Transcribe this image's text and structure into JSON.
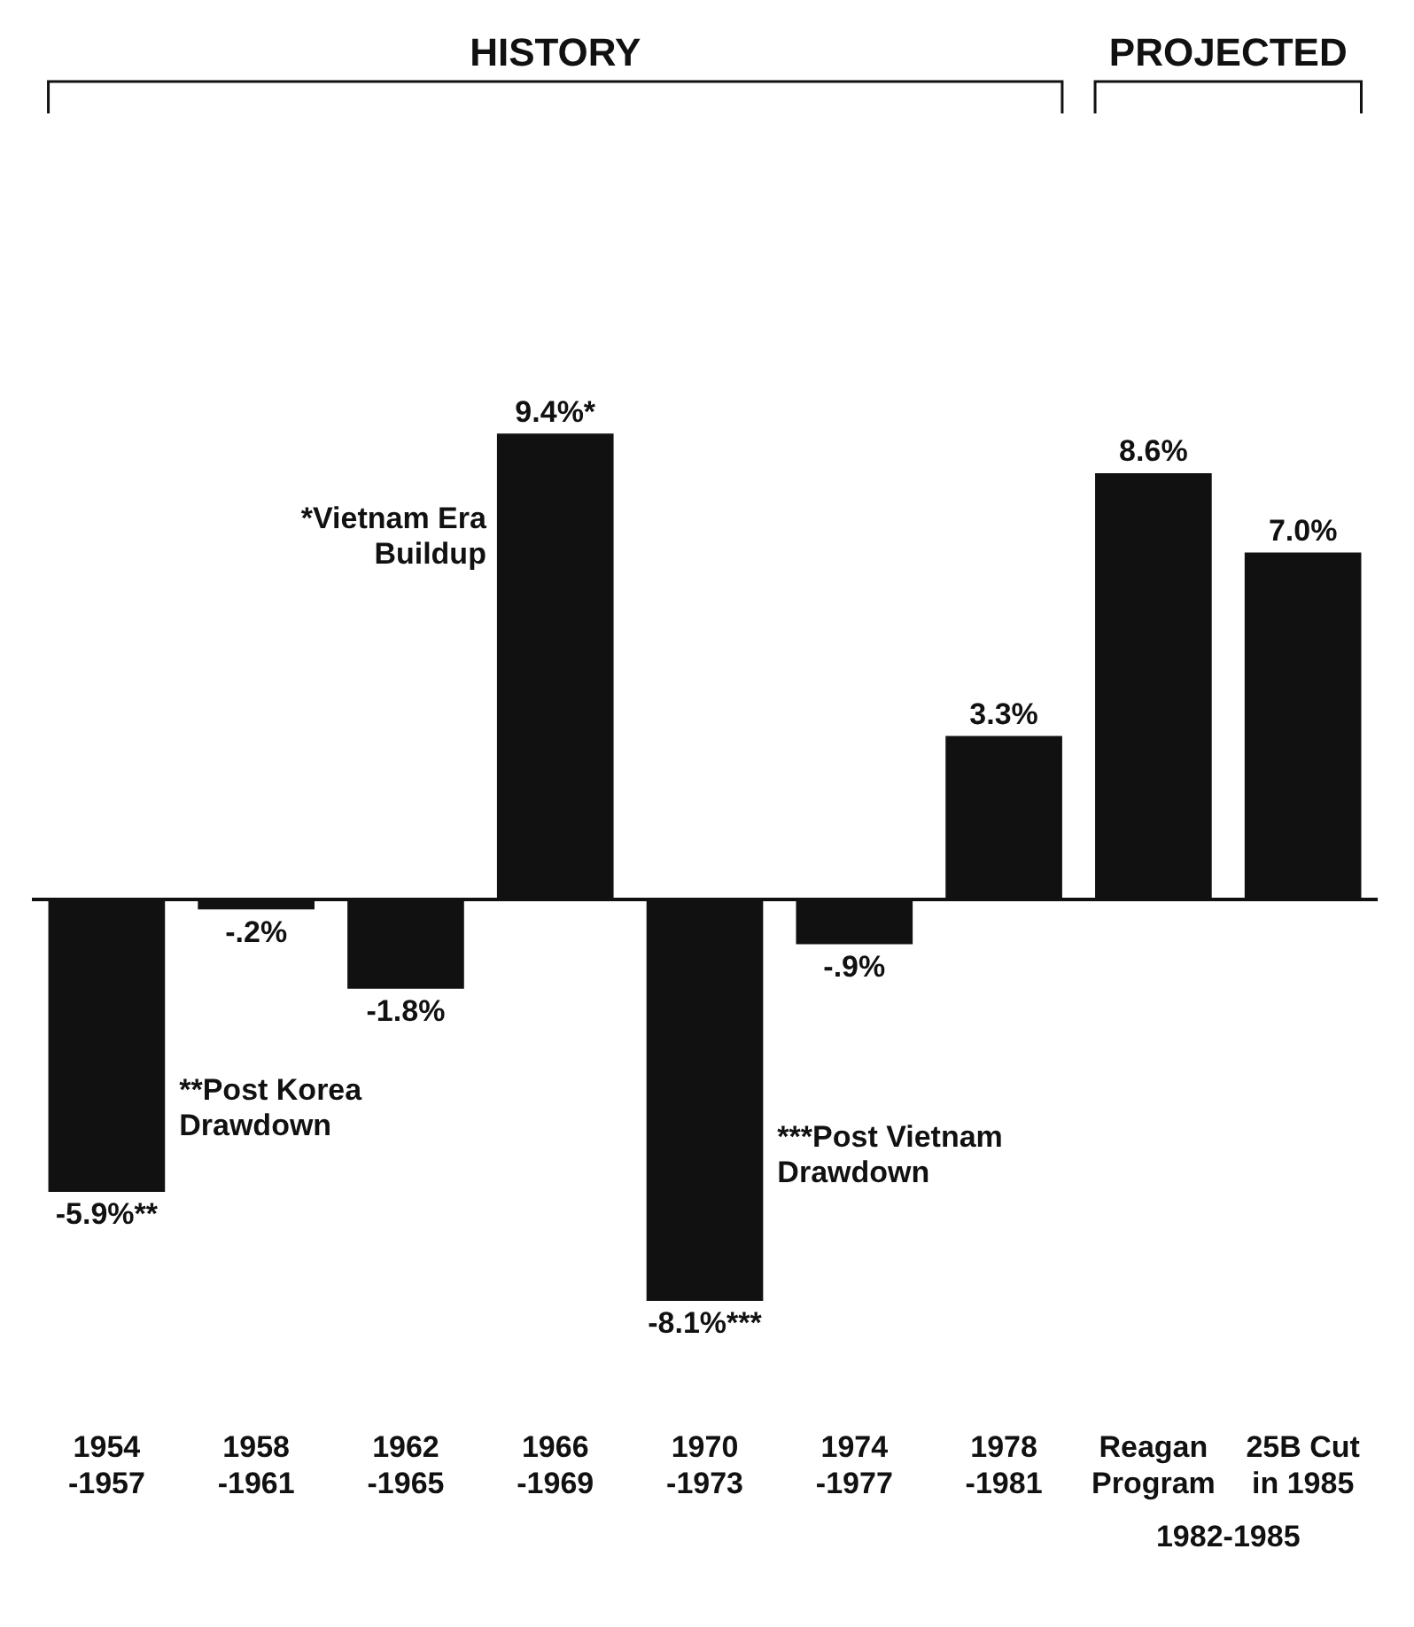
{
  "chart_data": {
    "type": "bar",
    "categories": [
      "1954 -1957",
      "1958 -1961",
      "1962 -1965",
      "1966 -1969",
      "1970 -1973",
      "1974 -1977",
      "1978 -1981",
      "Reagan Program",
      "25B Cut in 1985"
    ],
    "values": [
      -5.9,
      -0.2,
      -1.8,
      9.4,
      -8.1,
      -0.9,
      3.3,
      8.6,
      7.0
    ],
    "value_labels": [
      "-5.9%**",
      "-.2%",
      "-1.8%",
      "9.4%*",
      "-8.1%***",
      "-.9%",
      "3.3%",
      "8.6%",
      "7.0%"
    ],
    "color": "#111111",
    "annotations": [
      "HISTORY",
      "PROJECTED",
      "*Vietnam Era Buildup",
      "**Post Korea Drawdown",
      "***Post Vietnam Drawdown",
      "1982-1985"
    ],
    "grid": false,
    "legend": false
  }
}
